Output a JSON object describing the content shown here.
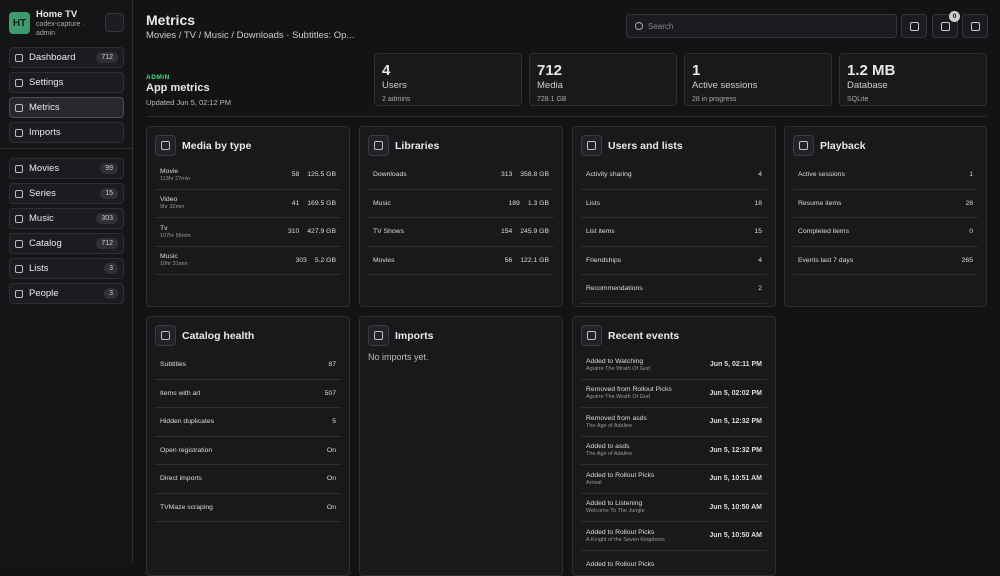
{
  "sidebar": {
    "initials": "HT",
    "name": "Home TV",
    "sub": "codex-capture · admin",
    "nav": [
      {
        "label": "Dashboard",
        "count": "712"
      },
      {
        "label": "Settings"
      },
      {
        "label": "Metrics"
      },
      {
        "label": "Imports"
      },
      {
        "label": "Movies",
        "count": "99"
      },
      {
        "label": "Series",
        "count": "15"
      },
      {
        "label": "Music",
        "count": "303"
      },
      {
        "label": "Catalog",
        "count": "712"
      },
      {
        "label": "Lists",
        "count": "3"
      },
      {
        "label": "People",
        "count": "3"
      }
    ]
  },
  "header": {
    "title": "Metrics",
    "breadcrumb": "Movies / TV / Music / Downloads · Subtitles: Op...",
    "search": "Search",
    "badge": "0"
  },
  "intro": {
    "eyebrow": "ADMIN",
    "title": "App metrics",
    "updated": "Updated Jun 5, 02:12 PM"
  },
  "stats": [
    {
      "value": "4",
      "label": "Users",
      "sub": "2 admins"
    },
    {
      "value": "712",
      "label": "Media",
      "sub": "728.1 GB"
    },
    {
      "value": "1",
      "label": "Active sessions",
      "sub": "28 in progress"
    },
    {
      "value": "1.2 MB",
      "label": "Database",
      "sub": "SQLite"
    }
  ],
  "cards": [
    {
      "title": "Media by type",
      "rows": [
        {
          "label": "Movie",
          "sub": "113hr 27min",
          "count": "58",
          "size": "125.5 GB"
        },
        {
          "label": "Video",
          "sub": "9hr 32min",
          "count": "41",
          "size": "169.5 GB"
        },
        {
          "label": "Tv",
          "sub": "107hr 56min",
          "count": "310",
          "size": "427.9 GB"
        },
        {
          "label": "Music",
          "sub": "10hr 31min",
          "count": "303",
          "size": "5.2 GB"
        }
      ]
    },
    {
      "title": "Libraries",
      "rows": [
        {
          "label": "Downloads",
          "count": "313",
          "size": "358.8 GB"
        },
        {
          "label": "Music",
          "count": "189",
          "size": "1.3 GB"
        },
        {
          "label": "TV Shows",
          "count": "154",
          "size": "245.9 GB"
        },
        {
          "label": "Movies",
          "count": "56",
          "size": "122.1 GB"
        }
      ]
    },
    {
      "title": "Users and lists",
      "rows": [
        {
          "label": "Activity sharing",
          "count": "4"
        },
        {
          "label": "Lists",
          "count": "18"
        },
        {
          "label": "List items",
          "count": "15"
        },
        {
          "label": "Friendships",
          "count": "4"
        },
        {
          "label": "Recommendations",
          "count": "2"
        }
      ]
    },
    {
      "title": "Playback",
      "rows": [
        {
          "label": "Active sessions",
          "count": "1"
        },
        {
          "label": "Resume items",
          "count": "28"
        },
        {
          "label": "Completed items",
          "count": "0"
        },
        {
          "label": "Events last 7 days",
          "count": "265"
        }
      ]
    },
    {
      "title": "Catalog health",
      "rows": [
        {
          "label": "Subtitles",
          "count": "87"
        },
        {
          "label": "Items with art",
          "count": "507"
        },
        {
          "label": "Hidden duplicates",
          "count": "5"
        },
        {
          "label": "Open registration",
          "count": "On"
        },
        {
          "label": "Direct imports",
          "count": "On"
        },
        {
          "label": "TVMaze scraping",
          "count": "On"
        }
      ]
    },
    {
      "title": "Imports",
      "empty": "No imports yet."
    },
    {
      "title": "Recent events",
      "rows": [
        {
          "label": "Added to Watching",
          "sub": "Aguirre The Wrath Of God",
          "time": "Jun 5, 02:11 PM"
        },
        {
          "label": "Removed from Rollout Picks",
          "sub": "Aguirre The Wrath Of God",
          "time": "Jun 5, 02:02 PM"
        },
        {
          "label": "Removed from asds",
          "sub": "The Age of Adaline",
          "time": "Jun 5, 12:32 PM"
        },
        {
          "label": "Added to asds",
          "sub": "The Age of Adaline",
          "time": "Jun 5, 12:32 PM"
        },
        {
          "label": "Added to Rollout Picks",
          "sub": "Arrival",
          "time": "Jun 5, 10:51 AM"
        },
        {
          "label": "Added to Listening",
          "sub": "Welcome To The Jungle",
          "time": "Jun 5, 10:50 AM"
        },
        {
          "label": "Added to Rollout Picks",
          "sub": "A Knight of the Seven Kingdoms",
          "time": "Jun 5, 10:50 AM"
        },
        {
          "label": "Added to Rollout Picks"
        }
      ]
    }
  ]
}
